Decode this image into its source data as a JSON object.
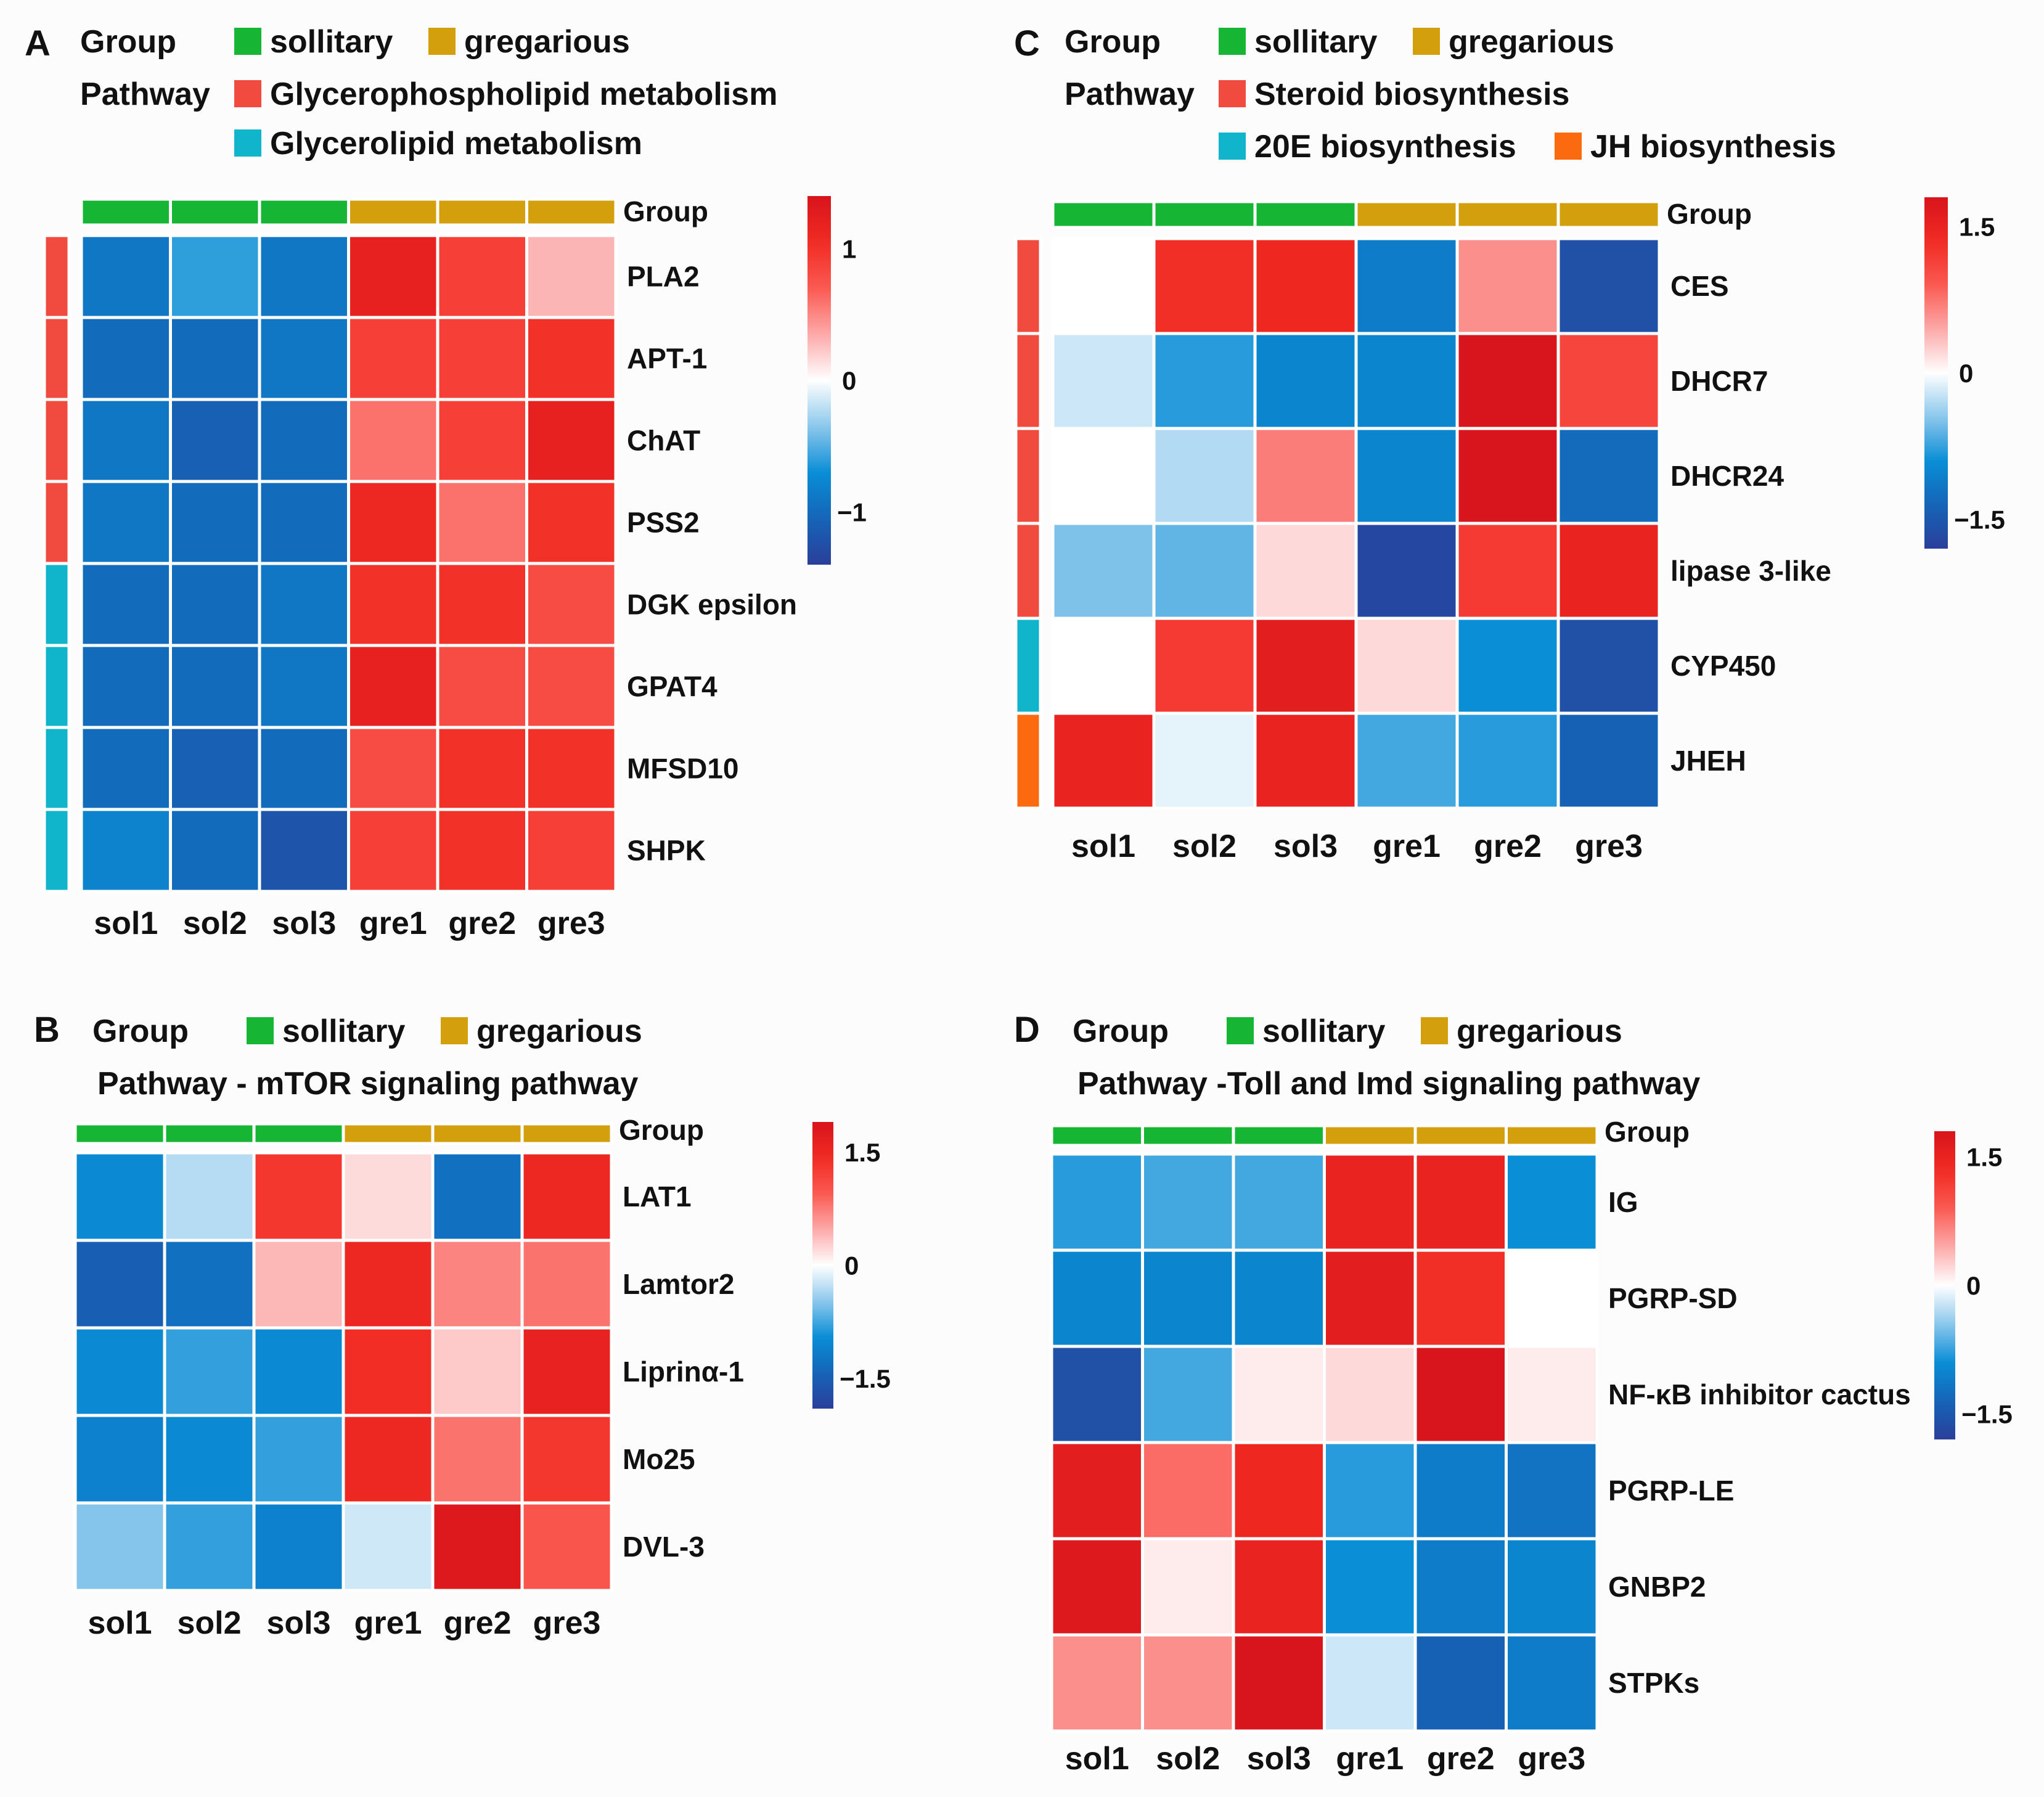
{
  "colors": {
    "sollitary": "#16b533",
    "gregarious": "#d39f0d",
    "glycerophospholipid": "#f04b3e",
    "glycerolipid": "#10b4cb",
    "steroid": "#f04b3e",
    "ecdysone": "#10b4cb",
    "jh": "#fb6a0f",
    "high": "#e01414",
    "mid": "#ffffff",
    "low": "#2a3f9a"
  },
  "legend_words": {
    "group": "Group",
    "pathway": "Pathway",
    "sollitary": "sollitary",
    "gregarious": "gregarious"
  },
  "chart_data": [
    {
      "panel": "A",
      "type": "heatmap",
      "pathway_legend": [
        {
          "label": "Glycerophospholipid metabolism",
          "color_key": "glycerophospholipid"
        },
        {
          "label": "Glycerolipid metabolism",
          "color_key": "glycerolipid"
        }
      ],
      "group_bar_label": "Group",
      "columns": [
        "sol1",
        "sol2",
        "sol3",
        "gre1",
        "gre2",
        "gre3"
      ],
      "column_groups": [
        "sollitary",
        "sollitary",
        "sollitary",
        "gregarious",
        "gregarious",
        "gregarious"
      ],
      "rows": [
        "PLA2",
        "APT-1",
        "ChAT",
        "PSS2",
        "DGK epsilon",
        "GPAT4",
        "MFSD10",
        "SHPK"
      ],
      "row_pathways": [
        "glycerophospholipid",
        "glycerophospholipid",
        "glycerophospholipid",
        "glycerophospholipid",
        "glycerolipid",
        "glycerolipid",
        "glycerolipid",
        "glycerolipid"
      ],
      "values": [
        [
          -0.9,
          -0.6,
          -0.9,
          1.2,
          0.9,
          0.3
        ],
        [
          -1.0,
          -1.0,
          -0.9,
          0.9,
          0.9,
          1.0
        ],
        [
          -0.9,
          -1.1,
          -1.0,
          0.6,
          0.9,
          1.2
        ],
        [
          -0.9,
          -1.0,
          -1.0,
          1.1,
          0.6,
          1.0
        ],
        [
          -1.0,
          -1.0,
          -0.9,
          1.0,
          1.0,
          0.8
        ],
        [
          -1.0,
          -1.0,
          -0.9,
          1.2,
          0.8,
          0.8
        ],
        [
          -1.0,
          -1.1,
          -1.0,
          0.8,
          1.0,
          1.0
        ],
        [
          -0.8,
          -1.0,
          -1.2,
          0.9,
          1.0,
          0.9
        ]
      ],
      "colorbar": {
        "range": [
          -1.4,
          1.4
        ],
        "ticks": [
          {
            "value": 1,
            "label": "1"
          },
          {
            "value": 0,
            "label": "0"
          },
          {
            "value": -1,
            "label": "−1"
          }
        ]
      }
    },
    {
      "panel": "B",
      "type": "heatmap",
      "pathway_title": "Pathway - mTOR signaling pathway",
      "group_bar_label": "Group",
      "columns": [
        "sol1",
        "sol2",
        "sol3",
        "gre1",
        "gre2",
        "gre3"
      ],
      "column_groups": [
        "sollitary",
        "sollitary",
        "sollitary",
        "gregarious",
        "gregarious",
        "gregarious"
      ],
      "rows": [
        "LAT1",
        "Lamtor2",
        "Liprinα-1",
        "Mo25",
        "DVL-3"
      ],
      "values": [
        [
          -1.0,
          -0.3,
          1.3,
          0.2,
          -1.3,
          1.5
        ],
        [
          -1.5,
          -1.3,
          0.4,
          1.5,
          0.7,
          0.8
        ],
        [
          -1.0,
          -0.8,
          -1.0,
          1.4,
          0.3,
          1.6
        ],
        [
          -1.1,
          -1.0,
          -0.8,
          1.5,
          0.8,
          1.3
        ],
        [
          -0.5,
          -0.8,
          -1.1,
          -0.2,
          1.8,
          1.0
        ]
      ],
      "colorbar": {
        "range": [
          -1.9,
          1.9
        ],
        "ticks": [
          {
            "value": 1.5,
            "label": "1.5"
          },
          {
            "value": 0,
            "label": "0"
          },
          {
            "value": -1.5,
            "label": "−1.5"
          }
        ]
      }
    },
    {
      "panel": "C",
      "type": "heatmap",
      "pathway_legend": [
        {
          "label": "Steroid biosynthesis",
          "color_key": "steroid"
        },
        {
          "label": "20E biosynthesis",
          "color_key": "ecdysone"
        },
        {
          "label": "JH biosynthesis",
          "color_key": "jh"
        }
      ],
      "group_bar_label": "Group",
      "columns": [
        "sol1",
        "sol2",
        "sol3",
        "gre1",
        "gre2",
        "gre3"
      ],
      "column_groups": [
        "sollitary",
        "sollitary",
        "sollitary",
        "gregarious",
        "gregarious",
        "gregarious"
      ],
      "rows": [
        "CES",
        "DHCR7",
        "DHCR24",
        "lipase 3-like",
        "CYP450",
        "JHEH"
      ],
      "row_pathways": [
        "steroid",
        "steroid",
        "steroid",
        "steroid",
        "ecdysone",
        "jh"
      ],
      "values": [
        [
          0.0,
          1.3,
          1.4,
          -1.1,
          0.6,
          -1.6
        ],
        [
          -0.2,
          -0.8,
          -1.0,
          -1.0,
          1.8,
          1.1
        ],
        [
          0.0,
          -0.3,
          0.7,
          -1.0,
          1.8,
          -1.3
        ],
        [
          -0.5,
          -0.6,
          0.2,
          -1.7,
          1.2,
          1.5
        ],
        [
          0.0,
          1.2,
          1.6,
          0.2,
          -0.9,
          -1.6
        ],
        [
          1.5,
          -0.1,
          1.5,
          -0.7,
          -0.8,
          -1.4
        ]
      ],
      "colorbar": {
        "range": [
          -1.8,
          1.8
        ],
        "ticks": [
          {
            "value": 1.5,
            "label": "1.5"
          },
          {
            "value": 0,
            "label": "0"
          },
          {
            "value": -1.5,
            "label": "−1.5"
          }
        ]
      }
    },
    {
      "panel": "D",
      "type": "heatmap",
      "pathway_title": "Pathway -Toll and Imd signaling pathway",
      "group_bar_label": "Group",
      "columns": [
        "sol1",
        "sol2",
        "sol3",
        "gre1",
        "gre2",
        "gre3"
      ],
      "column_groups": [
        "sollitary",
        "sollitary",
        "sollitary",
        "gregarious",
        "gregarious",
        "gregarious"
      ],
      "rows": [
        "IG",
        "PGRP-SD",
        "NF-κB inhibitor cactus",
        "PGRP-LE",
        "GNBP2",
        "STPKs"
      ],
      "values": [
        [
          -0.8,
          -0.7,
          -0.7,
          1.5,
          1.5,
          -0.9
        ],
        [
          -1.0,
          -1.0,
          -1.0,
          1.6,
          1.3,
          0.0
        ],
        [
          -1.6,
          -0.7,
          0.1,
          0.2,
          1.8,
          0.1
        ],
        [
          1.6,
          0.8,
          1.4,
          -0.8,
          -1.1,
          -1.2
        ],
        [
          1.7,
          0.1,
          1.5,
          -0.9,
          -1.1,
          -1.0
        ],
        [
          0.6,
          0.6,
          1.8,
          -0.2,
          -1.4,
          -1.1
        ]
      ],
      "colorbar": {
        "range": [
          -1.8,
          1.8
        ],
        "ticks": [
          {
            "value": 1.5,
            "label": "1.5"
          },
          {
            "value": 0,
            "label": "0"
          },
          {
            "value": -1.5,
            "label": "−1.5"
          }
        ]
      }
    }
  ]
}
